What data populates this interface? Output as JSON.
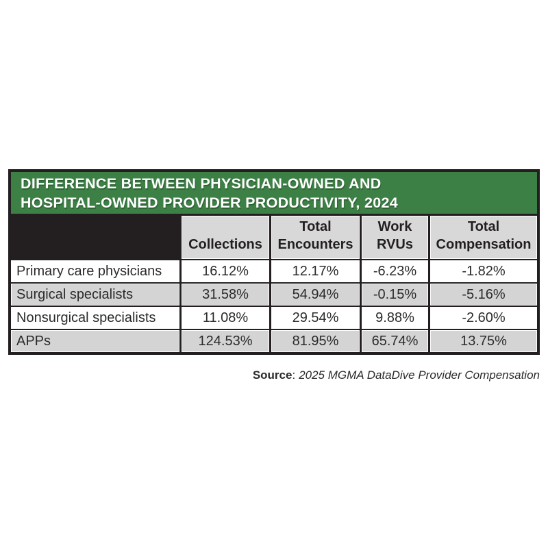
{
  "colors": {
    "header_green": "#3d8046",
    "grid_black": "#231f20",
    "row_gray": "#d4d4d4",
    "header_gray": "#d8d8d8",
    "row_white": "#ffffff",
    "title_text": "#ffffff"
  },
  "chart_data": {
    "type": "table",
    "title": "DIFFERENCE BETWEEN PHYSICIAN-OWNED AND HOSPITAL-OWNED PROVIDER PRODUCTIVITY, 2024",
    "title_lines": [
      "DIFFERENCE BETWEEN PHYSICIAN-OWNED AND",
      "HOSPITAL-OWNED PROVIDER PRODUCTIVITY, 2024"
    ],
    "columns": [
      "Collections",
      "Total Encounters",
      "Work RVUs",
      "Total Compensation"
    ],
    "column_header_lines": [
      {
        "line1": "",
        "line2": "Collections"
      },
      {
        "line1": "Total",
        "line2": "Encounters"
      },
      {
        "line1": "Work",
        "line2": "RVUs"
      },
      {
        "line1": "Total",
        "line2": "Compensation"
      }
    ],
    "rows": [
      {
        "label": "Primary care physicians",
        "values": [
          "16.12%",
          "12.17%",
          "-6.23%",
          "-1.82%"
        ]
      },
      {
        "label": "Surgical specialists",
        "values": [
          "31.58%",
          "54.94%",
          "-0.15%",
          "-5.16%"
        ]
      },
      {
        "label": "Nonsurgical specialists",
        "values": [
          "11.08%",
          "29.54%",
          "9.88%",
          "-2.60%"
        ]
      },
      {
        "label": "APPs",
        "values": [
          "124.53%",
          "81.95%",
          "65.74%",
          "13.75%"
        ]
      }
    ]
  },
  "source": {
    "label": "Source",
    "separator": ":",
    "text": "2025 MGMA DataDive Provider Compensation"
  }
}
